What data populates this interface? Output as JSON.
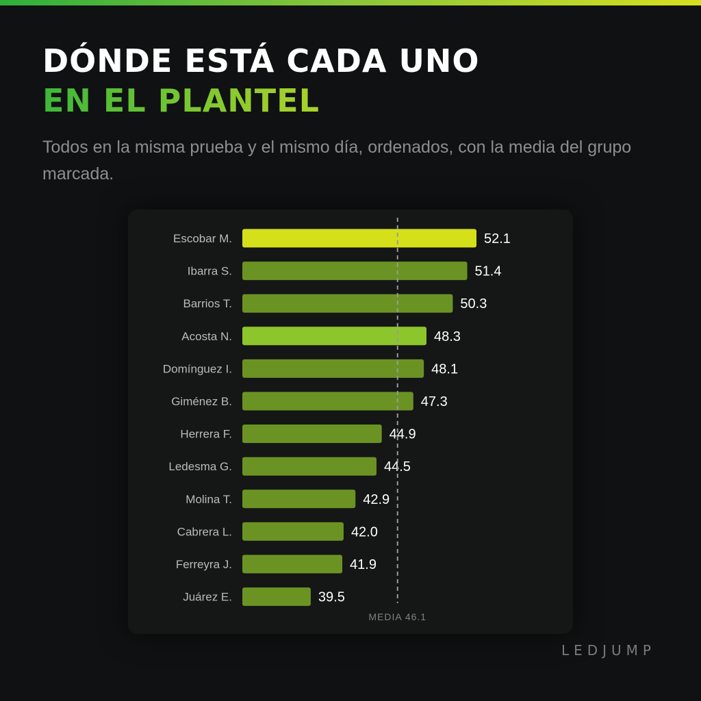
{
  "header": {
    "title_line1": "DÓNDE ESTÁ CADA UNO",
    "title_line2": "EN EL PLANTEL",
    "subtitle": "Todos en la misma prueba y el mismo día, ordenados, con la media del grupo marcada."
  },
  "brand": "LEDJUMP",
  "colors": {
    "bar_default": "#6b9323",
    "bar_top": "#d5e01b",
    "bar_highlight": "#8dc52d",
    "mean_line": "#9a9c9b"
  },
  "chart_data": {
    "type": "bar",
    "orientation": "horizontal",
    "categories": [
      "Escobar M.",
      "Ibarra S.",
      "Barrios T.",
      "Acosta N.",
      "Domínguez I.",
      "Giménez B.",
      "Herrera F.",
      "Ledesma G.",
      "Molina T.",
      "Cabrera L.",
      "Ferreyra J.",
      "Juárez E."
    ],
    "values": [
      52.1,
      51.4,
      50.3,
      48.3,
      48.1,
      47.3,
      44.9,
      44.5,
      42.9,
      42.0,
      41.9,
      39.5
    ],
    "value_labels": [
      "52.1",
      "51.4",
      "50.3",
      "48.3",
      "48.1",
      "47.3",
      "44.9",
      "44.5",
      "42.9",
      "42.0",
      "41.9",
      "39.5"
    ],
    "bar_styles": [
      "top",
      "default",
      "default",
      "highlight",
      "default",
      "default",
      "default",
      "default",
      "default",
      "default",
      "default",
      "default"
    ],
    "mean": 46.1,
    "mean_label": "MEDIA 46.1",
    "xlim": [
      34.3,
      52.1
    ],
    "grid": false,
    "legend": "none"
  }
}
